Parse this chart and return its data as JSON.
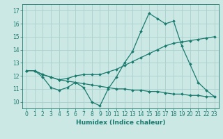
{
  "xlabel": "Humidex (Indice chaleur)",
  "ylabel": "",
  "background_color": "#cce8e5",
  "line_color": "#1a7a6e",
  "grid_color": "#aacfcc",
  "xlim": [
    -0.5,
    23.5
  ],
  "ylim": [
    9.5,
    17.5
  ],
  "yticks": [
    10,
    11,
    12,
    13,
    14,
    15,
    16,
    17
  ],
  "xticks": [
    0,
    1,
    2,
    3,
    4,
    5,
    6,
    7,
    8,
    9,
    10,
    11,
    12,
    13,
    14,
    15,
    16,
    17,
    18,
    19,
    20,
    21,
    22,
    23
  ],
  "line1_x": [
    0,
    1,
    2,
    3,
    4,
    5,
    6,
    7,
    8,
    9,
    10,
    11,
    12,
    13,
    14,
    15,
    16,
    17,
    18,
    19,
    20,
    21,
    22,
    23
  ],
  "line1_y": [
    12.4,
    12.4,
    11.9,
    11.1,
    10.9,
    11.1,
    11.5,
    11.1,
    10.0,
    9.7,
    11.0,
    11.9,
    13.0,
    13.9,
    15.4,
    16.8,
    16.4,
    16.0,
    16.2,
    14.3,
    12.9,
    11.5,
    10.9,
    10.4
  ],
  "line2_x": [
    0,
    1,
    2,
    3,
    4,
    5,
    6,
    7,
    8,
    9,
    10,
    11,
    12,
    13,
    14,
    15,
    16,
    17,
    18,
    19,
    20,
    21,
    22,
    23
  ],
  "line2_y": [
    12.4,
    12.4,
    12.1,
    11.9,
    11.7,
    11.8,
    12.0,
    12.1,
    12.1,
    12.1,
    12.3,
    12.5,
    12.8,
    13.1,
    13.4,
    13.7,
    14.0,
    14.3,
    14.5,
    14.6,
    14.7,
    14.8,
    14.9,
    15.0
  ],
  "line3_x": [
    0,
    1,
    2,
    3,
    4,
    5,
    6,
    7,
    8,
    9,
    10,
    11,
    12,
    13,
    14,
    15,
    16,
    17,
    18,
    19,
    20,
    21,
    22,
    23
  ],
  "line3_y": [
    12.4,
    12.4,
    12.1,
    11.9,
    11.7,
    11.6,
    11.5,
    11.4,
    11.3,
    11.2,
    11.1,
    11.0,
    11.0,
    10.9,
    10.9,
    10.8,
    10.8,
    10.7,
    10.6,
    10.6,
    10.5,
    10.5,
    10.4,
    10.4
  ],
  "tick_fontsize": 5.5,
  "xlabel_fontsize": 6.5,
  "marker_size": 2.0,
  "line_width": 0.9
}
